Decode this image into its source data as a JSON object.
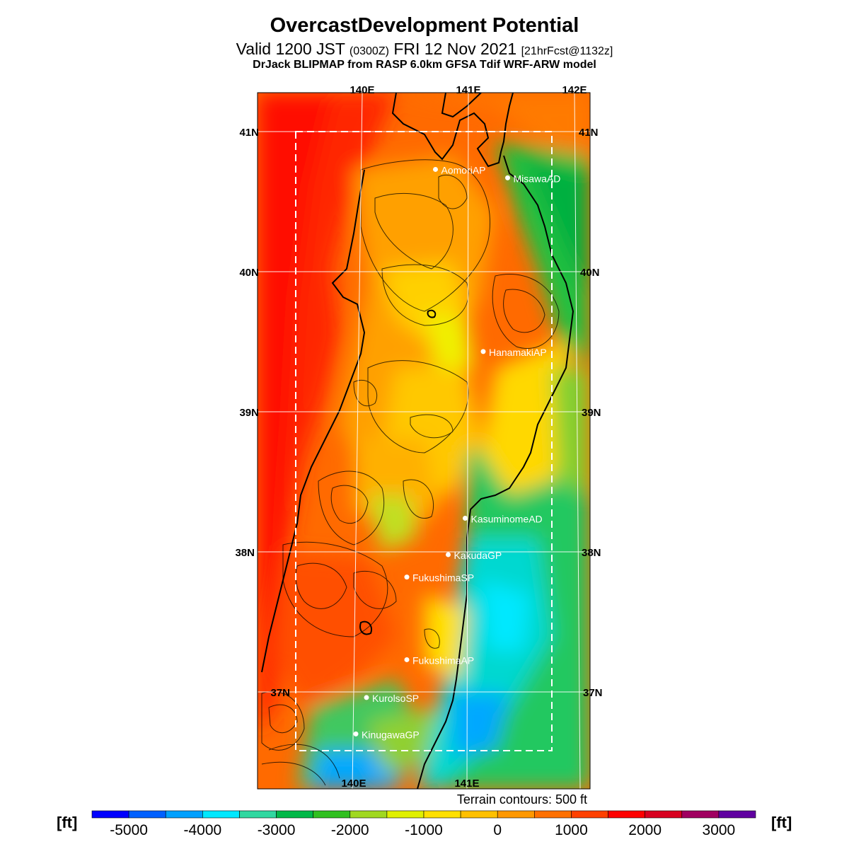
{
  "header": {
    "title": "OvercastDevelopment Potential",
    "valid_main": "Valid 1200 JST",
    "valid_utc": "(0300Z)",
    "date": "FRI 12 Nov 2021",
    "forecast": "[21hrFcst@1132z]",
    "model": "DrJack BLIPMAP from RASP 6.0km GFSA Tdif WRF-ARW model"
  },
  "map": {
    "lon_top": [
      "140E",
      "141E",
      "142E"
    ],
    "lon_bottom": [
      "140E",
      "141E"
    ],
    "lat_left": [
      "41N",
      "40N",
      "39N",
      "38N",
      "37N"
    ],
    "lat_right": [
      "41N",
      "40N",
      "39N",
      "38N",
      "37N"
    ],
    "stations": [
      {
        "name": "AomoriAP",
        "lon": 140.69,
        "lat": 40.73
      },
      {
        "name": "MisawaAD",
        "lon": 141.37,
        "lat": 40.67
      },
      {
        "name": "HanamakiAP",
        "lon": 141.14,
        "lat": 39.43
      },
      {
        "name": "KasuminomeAD",
        "lon": 140.97,
        "lat": 38.24
      },
      {
        "name": "KakudaGP",
        "lon": 140.81,
        "lat": 37.98
      },
      {
        "name": "FukushimaSP",
        "lon": 140.42,
        "lat": 37.82
      },
      {
        "name": "FukushimaAP",
        "lon": 140.42,
        "lat": 37.23
      },
      {
        "name": "KurolsoSP",
        "lon": 140.04,
        "lat": 36.96
      },
      {
        "name": "KinugawaGP",
        "lon": 139.94,
        "lat": 36.7
      }
    ],
    "terrain_contours": "Terrain contours: 500 ft"
  },
  "colorbar": {
    "unit": "[ft]",
    "labels": [
      "-5000",
      "-4000",
      "-3000",
      "-2000",
      "-1000",
      "0",
      "1000",
      "2000",
      "3000"
    ],
    "colors": [
      "#0000ff",
      "#0060ff",
      "#00a0ff",
      "#00e8ff",
      "#30d8a0",
      "#00b848",
      "#30c020",
      "#a0d820",
      "#e0f000",
      "#ffe000",
      "#ffc000",
      "#ff9800",
      "#ff7000",
      "#ff4000",
      "#ff0000",
      "#d80020",
      "#a00060",
      "#6000a0"
    ]
  }
}
